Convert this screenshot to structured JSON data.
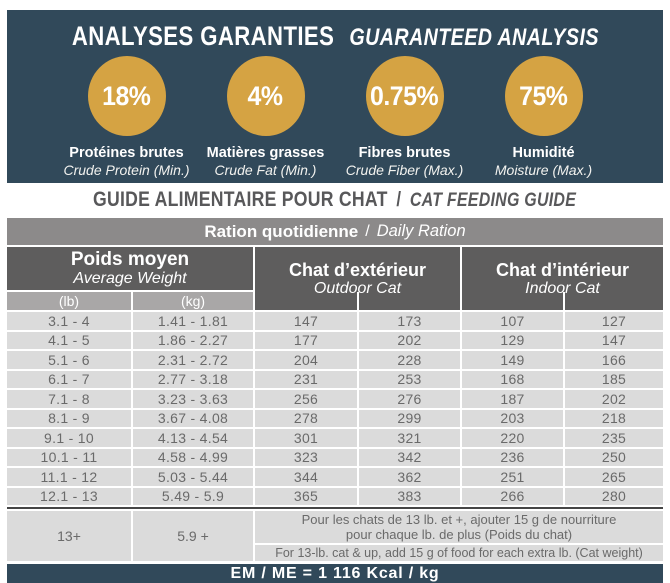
{
  "colors": {
    "banner_bg": "#31495A",
    "circle_gold": "#D5A343",
    "header_dark_gray": "#5E5D5D",
    "ration_bar_gray": "#8C8A8A",
    "subheader_gray": "#A9A7A7",
    "row_bg": "#DBDBDB",
    "row_text": "#6A6A6A",
    "title_gray": "#58585A"
  },
  "guaranteed_analysis": {
    "title_fr": "ANALYSES GARANTIES",
    "title_en": "GUARANTEED ANALYSIS",
    "stats": [
      {
        "value": "18%",
        "label_fr": "Protéines brutes",
        "label_en": "Crude Protein (Min.)"
      },
      {
        "value": "4%",
        "label_fr": "Matières grasses",
        "label_en": "Crude Fat (Min.)"
      },
      {
        "value": "0.75%",
        "label_fr": "Fibres brutes",
        "label_en": "Crude Fiber (Max.)"
      },
      {
        "value": "75%",
        "label_fr": "Humidité",
        "label_en": "Moisture (Max.)"
      }
    ]
  },
  "feeding_guide": {
    "title_fr": "GUIDE ALIMENTAIRE POUR CHAT",
    "title_sep": "/",
    "title_en": "CAT FEEDING GUIDE",
    "ration_fr": "Ration quotidienne",
    "ration_sep": "/",
    "ration_en": "Daily Ration",
    "headers": {
      "weight_fr": "Poids moyen",
      "weight_en": "Average Weight",
      "lb": "(lb)",
      "kg": "(kg)",
      "outdoor_fr": "Chat d’extérieur",
      "outdoor_en": "Outdoor Cat",
      "indoor_fr": "Chat d’intérieur",
      "indoor_en": "Indoor Cat"
    },
    "rows": [
      {
        "lb": "3.1 - 4",
        "kg": "1.41 - 1.81",
        "outdoor": [
          "147",
          "173"
        ],
        "indoor": [
          "107",
          "127"
        ]
      },
      {
        "lb": "4.1 - 5",
        "kg": "1.86 - 2.27",
        "outdoor": [
          "177",
          "202"
        ],
        "indoor": [
          "129",
          "147"
        ]
      },
      {
        "lb": "5.1 - 6",
        "kg": "2.31 - 2.72",
        "outdoor": [
          "204",
          "228"
        ],
        "indoor": [
          "149",
          "166"
        ]
      },
      {
        "lb": "6.1 - 7",
        "kg": "2.77 - 3.18",
        "outdoor": [
          "231",
          "253"
        ],
        "indoor": [
          "168",
          "185"
        ]
      },
      {
        "lb": "7.1 - 8",
        "kg": "3.23 - 3.63",
        "outdoor": [
          "256",
          "276"
        ],
        "indoor": [
          "187",
          "202"
        ]
      },
      {
        "lb": "8.1 - 9",
        "kg": "3.67 - 4.08",
        "outdoor": [
          "278",
          "299"
        ],
        "indoor": [
          "203",
          "218"
        ]
      },
      {
        "lb": "9.1 - 10",
        "kg": "4.13 - 4.54",
        "outdoor": [
          "301",
          "321"
        ],
        "indoor": [
          "220",
          "235"
        ]
      },
      {
        "lb": "10.1 - 11",
        "kg": "4.58 - 4.99",
        "outdoor": [
          "323",
          "342"
        ],
        "indoor": [
          "236",
          "250"
        ]
      },
      {
        "lb": "11.1 - 12",
        "kg": "5.03 - 5.44",
        "outdoor": [
          "344",
          "362"
        ],
        "indoor": [
          "251",
          "265"
        ]
      },
      {
        "lb": "12.1 - 13",
        "kg": "5.49 - 5.9",
        "outdoor": [
          "365",
          "383"
        ],
        "indoor": [
          "266",
          "280"
        ]
      }
    ],
    "extra_row": {
      "lb": "13+",
      "kg": "5.9 +",
      "note_fr_1": "Pour les chats de 13 lb. et +, ajouter 15 g de nourriture",
      "note_fr_2": "pour chaque lb. de plus (Poids du chat)",
      "note_en": "For 13-lb. cat & up, add 15 g of food for each extra lb. (Cat weight)"
    },
    "footer": "EM / ME = 1 116 Kcal / kg"
  }
}
